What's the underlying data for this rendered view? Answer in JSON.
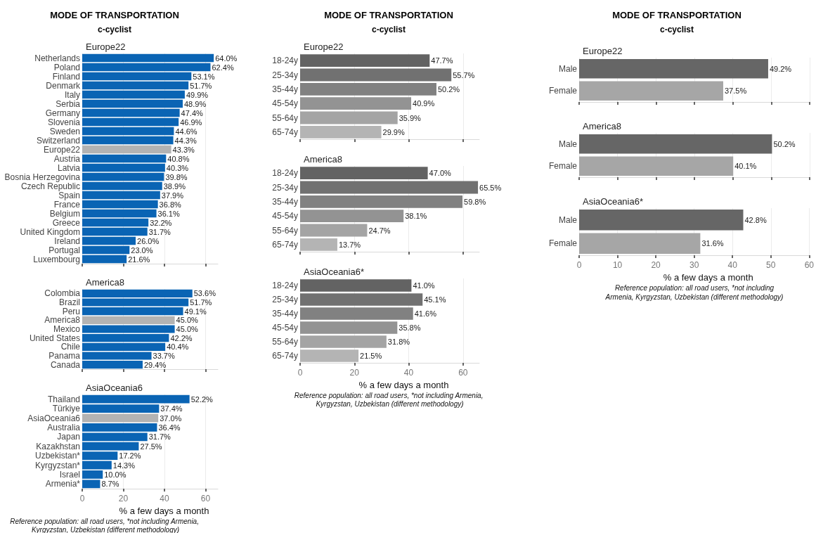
{
  "chart_data": [
    {
      "type": "bar",
      "orientation": "horizontal",
      "title": "Europe22",
      "annotations": [
        "MODE OF TRANSPORTATION",
        "c-cyclist"
      ],
      "categories": [
        "Netherlands",
        "Poland",
        "Finland",
        "Denmark",
        "Italy",
        "Serbia",
        "Germany",
        "Slovenia",
        "Sweden",
        "Switzerland",
        "Europe22",
        "Austria",
        "Latvia",
        "Bosnia Herzegovina",
        "Czech Republic",
        "Spain",
        "France",
        "Belgium",
        "Greece",
        "United Kingdom",
        "Ireland",
        "Portugal",
        "Luxembourg"
      ],
      "values": [
        64.0,
        62.4,
        53.1,
        51.7,
        49.9,
        48.9,
        47.4,
        46.9,
        44.6,
        44.3,
        43.3,
        40.8,
        40.3,
        39.8,
        38.9,
        37.9,
        36.8,
        36.1,
        32.2,
        31.7,
        26.0,
        23.0,
        21.6
      ],
      "value_labels": [
        "64.0%",
        "62.4%",
        "53.1%",
        "51.7%",
        "49.9%",
        "48.9%",
        "47.4%",
        "46.9%",
        "44.6%",
        "44.3%",
        "43.3%",
        "40.8%",
        "40.3%",
        "39.8%",
        "38.9%",
        "37.9%",
        "36.8%",
        "36.1%",
        "32.2%",
        "31.7%",
        "26.0%",
        "23.0%",
        "21.6%"
      ],
      "colors": [
        "#0a64b4",
        "#0a64b4",
        "#0a64b4",
        "#0a64b4",
        "#0a64b4",
        "#0a64b4",
        "#0a64b4",
        "#0a64b4",
        "#0a64b4",
        "#0a64b4",
        "#b3b3b3",
        "#0a64b4",
        "#0a64b4",
        "#0a64b4",
        "#0a64b4",
        "#0a64b4",
        "#0a64b4",
        "#0a64b4",
        "#0a64b4",
        "#0a64b4",
        "#0a64b4",
        "#0a64b4",
        "#0a64b4"
      ],
      "xlim": [
        0,
        66
      ],
      "xticks": [
        0,
        20,
        40,
        60
      ],
      "grid": "x",
      "tick_labels": "y"
    },
    {
      "type": "bar",
      "orientation": "horizontal",
      "title": "America8",
      "categories": [
        "Colombia",
        "Brazil",
        "Peru",
        "America8",
        "Mexico",
        "United States",
        "Chile",
        "Panama",
        "Canada"
      ],
      "values": [
        53.6,
        51.7,
        49.1,
        45.0,
        45.0,
        42.2,
        40.4,
        33.7,
        29.4
      ],
      "value_labels": [
        "53.6%",
        "51.7%",
        "49.1%",
        "45.0%",
        "45.0%",
        "42.2%",
        "40.4%",
        "33.7%",
        "29.4%"
      ],
      "colors": [
        "#0a64b4",
        "#0a64b4",
        "#0a64b4",
        "#b3b3b3",
        "#0a64b4",
        "#0a64b4",
        "#0a64b4",
        "#0a64b4",
        "#0a64b4"
      ],
      "xlim": [
        0,
        66
      ],
      "xticks": [
        0,
        20,
        40,
        60
      ],
      "grid": "x",
      "tick_labels": "y"
    },
    {
      "type": "bar",
      "orientation": "horizontal",
      "title": "AsiaOceania6",
      "xlabel": "% a few days a month",
      "annotations": [
        "Reference population: all road users, *not including Armenia, Kyrgyzstan, Uzbekistan (different methodology)"
      ],
      "categories": [
        "Thailand",
        "Türkiye",
        "AsiaOceania6",
        "Australia",
        "Japan",
        "Kazakhstan",
        "Uzbekistan*",
        "Kyrgyzstan*",
        "Israel",
        "Armenia*"
      ],
      "values": [
        52.2,
        37.4,
        37.0,
        36.4,
        31.7,
        27.5,
        17.2,
        14.3,
        10.0,
        8.7
      ],
      "value_labels": [
        "52.2%",
        "37.4%",
        "37.0%",
        "36.4%",
        "31.7%",
        "27.5%",
        "17.2%",
        "14.3%",
        "10.0%",
        "8.7%"
      ],
      "colors": [
        "#0a64b4",
        "#0a64b4",
        "#b3b3b3",
        "#0a64b4",
        "#0a64b4",
        "#0a64b4",
        "#0a64b4",
        "#0a64b4",
        "#0a64b4",
        "#0a64b4"
      ],
      "xlim": [
        0,
        66
      ],
      "xticks": [
        0,
        20,
        40,
        60
      ],
      "grid": "x"
    },
    {
      "type": "bar",
      "orientation": "horizontal",
      "title": "Europe22",
      "annotations": [
        "MODE OF TRANSPORTATION",
        "c-cyclist"
      ],
      "categories": [
        "18-24y",
        "25-34y",
        "35-44y",
        "45-54y",
        "55-64y",
        "65-74y"
      ],
      "values": [
        47.7,
        55.7,
        50.2,
        40.9,
        35.9,
        29.9
      ],
      "value_labels": [
        "47.7%",
        "55.7%",
        "50.2%",
        "40.9%",
        "35.9%",
        "29.9%"
      ],
      "colors": [
        "#636363",
        "#717171",
        "#818181",
        "#939393",
        "#a4a4a4",
        "#b4b4b4"
      ],
      "xlim": [
        0,
        66
      ],
      "xticks": [
        0,
        20,
        40,
        60
      ],
      "grid": "x",
      "tick_labels": "y"
    },
    {
      "type": "bar",
      "orientation": "horizontal",
      "title": "America8",
      "categories": [
        "18-24y",
        "25-34y",
        "35-44y",
        "45-54y",
        "55-64y",
        "65-74y"
      ],
      "values": [
        47.0,
        65.5,
        59.8,
        38.1,
        24.7,
        13.7
      ],
      "value_labels": [
        "47.0%",
        "65.5%",
        "59.8%",
        "38.1%",
        "24.7%",
        "13.7%"
      ],
      "colors": [
        "#636363",
        "#717171",
        "#818181",
        "#939393",
        "#a4a4a4",
        "#b4b4b4"
      ],
      "xlim": [
        0,
        66
      ],
      "xticks": [
        0,
        20,
        40,
        60
      ],
      "grid": "x",
      "tick_labels": "y"
    },
    {
      "type": "bar",
      "orientation": "horizontal",
      "title": "AsiaOceania6*",
      "xlabel": "% a few days a month",
      "annotations": [
        "Reference population: all road users, *not including Armenia, Kyrgyzstan, Uzbekistan (different methodology)"
      ],
      "categories": [
        "18-24y",
        "25-34y",
        "35-44y",
        "45-54y",
        "55-64y",
        "65-74y"
      ],
      "values": [
        41.0,
        45.1,
        41.6,
        35.8,
        31.8,
        21.5
      ],
      "value_labels": [
        "41.0%",
        "45.1%",
        "41.6%",
        "35.8%",
        "31.8%",
        "21.5%"
      ],
      "colors": [
        "#636363",
        "#717171",
        "#818181",
        "#939393",
        "#a4a4a4",
        "#b4b4b4"
      ],
      "xlim": [
        0,
        66
      ],
      "xticks": [
        0,
        20,
        40,
        60
      ],
      "grid": "x"
    },
    {
      "type": "bar",
      "orientation": "horizontal",
      "title": "Europe22",
      "annotations": [
        "MODE OF TRANSPORTATION",
        "c-cyclist"
      ],
      "categories": [
        "Male",
        "Female"
      ],
      "values": [
        49.2,
        37.5
      ],
      "value_labels": [
        "49.2%",
        "37.5%"
      ],
      "colors": [
        "#666666",
        "#a6a6a6"
      ],
      "xlim": [
        0,
        60
      ],
      "xticks": [
        0,
        10,
        20,
        30,
        40,
        50,
        60
      ],
      "grid": "x",
      "tick_labels": "y"
    },
    {
      "type": "bar",
      "orientation": "horizontal",
      "title": "America8",
      "categories": [
        "Male",
        "Female"
      ],
      "values": [
        50.2,
        40.1
      ],
      "value_labels": [
        "50.2%",
        "40.1%"
      ],
      "colors": [
        "#666666",
        "#a6a6a6"
      ],
      "xlim": [
        0,
        60
      ],
      "xticks": [
        0,
        10,
        20,
        30,
        40,
        50,
        60
      ],
      "grid": "x",
      "tick_labels": "y"
    },
    {
      "type": "bar",
      "orientation": "horizontal",
      "title": "AsiaOceania6*",
      "xlabel": "% a few days a month",
      "annotations": [
        "Reference population: all road users, *not including",
        "Armenia, Kyrgyzstan, Uzbekistan (different methodology)"
      ],
      "categories": [
        "Male",
        "Female"
      ],
      "values": [
        42.8,
        31.6
      ],
      "value_labels": [
        "42.8%",
        "31.6%"
      ],
      "colors": [
        "#666666",
        "#a6a6a6"
      ],
      "xlim": [
        0,
        60
      ],
      "xticks": [
        0,
        10,
        20,
        30,
        40,
        50,
        60
      ],
      "grid": "x"
    }
  ]
}
